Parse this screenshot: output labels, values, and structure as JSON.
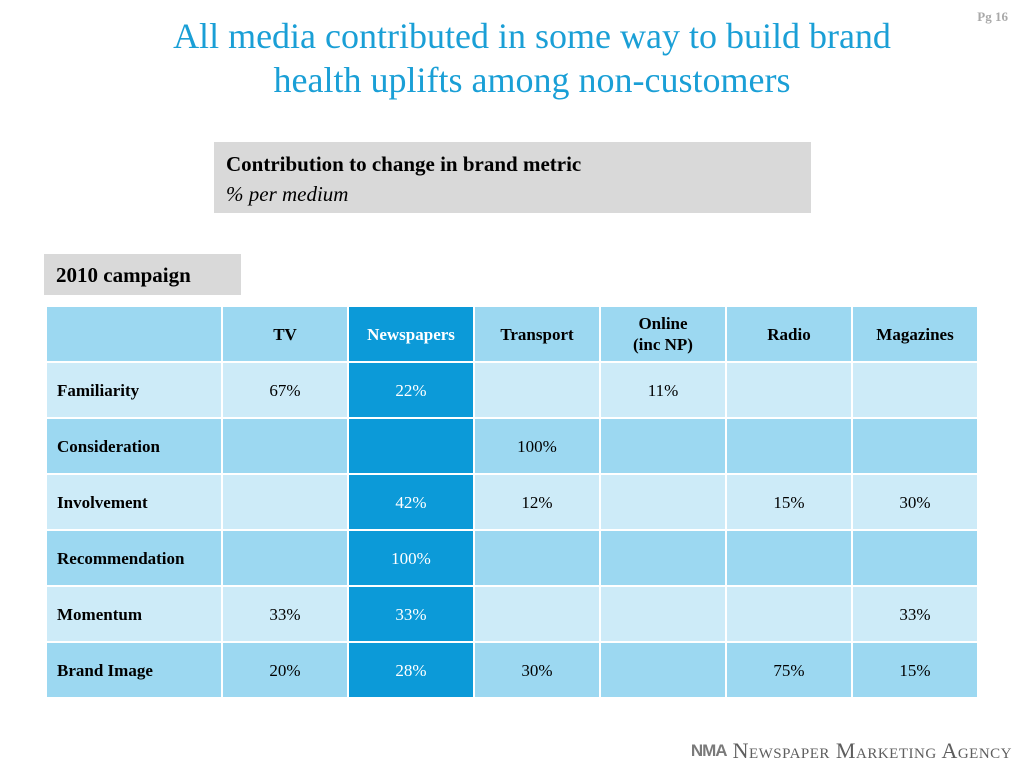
{
  "page_number": "Pg 16",
  "title_line1": "All media contributed in some way to build brand",
  "title_line2": "health uplifts among non-customers",
  "metric_box": {
    "title": "Contribution to change in brand metric",
    "subtitle": "% per medium"
  },
  "campaign_label": "2010 campaign",
  "table": {
    "columns": [
      {
        "label": "TV"
      },
      {
        "label": "Newspapers"
      },
      {
        "label": "Transport"
      },
      {
        "label_line1": "Online",
        "label_line2": "(inc NP)"
      },
      {
        "label": "Radio"
      },
      {
        "label": "Magazines"
      }
    ],
    "rows": [
      {
        "label": "Familiarity",
        "values": [
          "67%",
          "22%",
          "",
          "11%",
          "",
          ""
        ]
      },
      {
        "label": "Consideration",
        "values": [
          "",
          "",
          "100%",
          "",
          "",
          ""
        ]
      },
      {
        "label": "Involvement",
        "values": [
          "",
          "42%",
          "12%",
          "",
          "15%",
          "30%"
        ]
      },
      {
        "label": "Recommendation",
        "values": [
          "",
          "100%",
          "",
          "",
          "",
          ""
        ]
      },
      {
        "label": "Momentum",
        "values": [
          "33%",
          "33%",
          "",
          "",
          "",
          "33%"
        ]
      },
      {
        "label": "Brand Image",
        "values": [
          "20%",
          "28%",
          "30%",
          "",
          "75%",
          "15%"
        ]
      }
    ]
  },
  "footer": {
    "logo_mark": "NMA",
    "agency_name": "Newspaper Marketing Agency"
  },
  "colors": {
    "title": "#1a9fd6",
    "highlight_column": "#0c9ad8",
    "row_dark": "#9cd8f1",
    "row_light": "#cdebf8",
    "box_gray": "#d9d9d9"
  }
}
